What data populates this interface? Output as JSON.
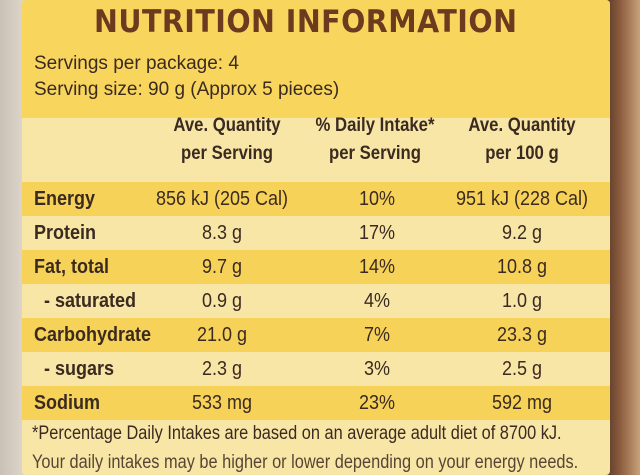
{
  "label": {
    "title": "NUTRITION INFORMATION",
    "servings_per_package": "Servings per package: 4",
    "serving_size": "Serving size: 90 g (Approx 5 pieces)",
    "columns": [
      {
        "line1": "Ave. Quantity",
        "line2": "per Serving"
      },
      {
        "line1": "% Daily Intake*",
        "line2": "per Serving"
      },
      {
        "line1": "Ave. Quantity",
        "line2": "per 100 g"
      }
    ],
    "rows": [
      {
        "name": "Energy",
        "per_serving": "856 kJ (205 Cal)",
        "daily_intake": "10%",
        "per_100g": "951 kJ (228 Cal)"
      },
      {
        "name": "Protein",
        "per_serving": "8.3 g",
        "daily_intake": "17%",
        "per_100g": "9.2 g"
      },
      {
        "name": "Fat, total",
        "per_serving": "9.7 g",
        "daily_intake": "14%",
        "per_100g": "10.8 g"
      },
      {
        "name": "- saturated",
        "per_serving": "0.9 g",
        "daily_intake": "4%",
        "per_100g": "1.0 g"
      },
      {
        "name": "Carbohydrate",
        "per_serving": "21.0 g",
        "daily_intake": "7%",
        "per_100g": "23.3 g"
      },
      {
        "name": "- sugars",
        "per_serving": "2.3 g",
        "daily_intake": "3%",
        "per_100g": "2.5 g"
      },
      {
        "name": "Sodium",
        "per_serving": "533 mg",
        "daily_intake": "23%",
        "per_100g": "592 mg"
      }
    ],
    "footnote": "*Percentage Daily Intakes are based on an average adult diet of 8700 kJ.",
    "footnote_partial": "Your daily intakes may be higher or lower depending on your energy needs."
  },
  "colors": {
    "panel": "#f7e6a6",
    "band": "#f6d259",
    "title": "#6b3a1f",
    "text": "#3b2a20"
  }
}
